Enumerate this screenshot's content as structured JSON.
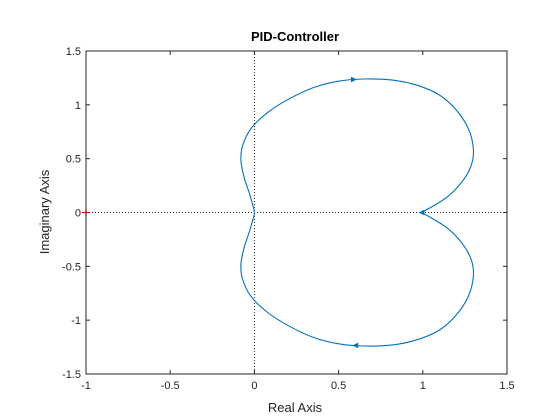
{
  "chart_data": {
    "type": "line",
    "title": "PID-Controller",
    "xlabel": "Real Axis",
    "ylabel": "Imaginary Axis",
    "xlim": [
      -1,
      1.5
    ],
    "ylim": [
      -1.5,
      1.5
    ],
    "xticks": [
      -1,
      -0.5,
      0,
      0.5,
      1,
      1.5
    ],
    "xtick_labels": [
      "-1",
      "-0.5",
      "0",
      "0.5",
      "1",
      "1.5"
    ],
    "yticks": [
      -1.5,
      -1,
      -0.5,
      0,
      0.5,
      1,
      1.5
    ],
    "ytick_labels": [
      "-1.5",
      "-1",
      "-0.5",
      "0",
      "0.5",
      "1",
      "1.5"
    ],
    "grid": false,
    "reference_lines": {
      "x": 0,
      "y": 0,
      "style": "dotted"
    },
    "critical_point": {
      "x": -1,
      "y": 0,
      "marker": "+",
      "color": "#ff0000"
    },
    "series": [
      {
        "color": "#0072bd",
        "x": [
          0.99,
          1.05,
          1.15,
          1.24,
          1.29,
          1.3,
          1.27,
          1.2,
          1.1,
          0.97,
          0.82,
          0.65,
          0.5,
          0.35,
          0.2,
          0.08,
          -0.02,
          -0.07,
          -0.08,
          -0.06,
          -0.03,
          -0.01,
          0.0,
          -0.01,
          -0.03,
          -0.06,
          -0.08,
          -0.07,
          -0.02,
          0.08,
          0.2,
          0.35,
          0.5,
          0.65,
          0.82,
          0.97,
          1.1,
          1.2,
          1.27,
          1.3,
          1.29,
          1.24,
          1.15,
          1.05,
          0.99
        ],
        "y": [
          0.0,
          0.05,
          0.15,
          0.3,
          0.45,
          0.6,
          0.78,
          0.95,
          1.09,
          1.18,
          1.23,
          1.24,
          1.22,
          1.16,
          1.05,
          0.93,
          0.78,
          0.62,
          0.48,
          0.32,
          0.18,
          0.07,
          0.0,
          -0.07,
          -0.18,
          -0.32,
          -0.48,
          -0.62,
          -0.78,
          -0.93,
          -1.05,
          -1.16,
          -1.22,
          -1.24,
          -1.23,
          -1.18,
          -1.09,
          -0.95,
          -0.78,
          -0.6,
          -0.45,
          -0.3,
          -0.15,
          -0.05,
          0.0
        ]
      }
    ],
    "direction_arrows": [
      {
        "x": 0.59,
        "y": 1.235,
        "dx": 1,
        "dy": 0
      },
      {
        "x": 0.6,
        "y": -1.235,
        "dx": -1,
        "dy": 0
      },
      {
        "x": 0.993,
        "y": 0.0,
        "dx": -1,
        "dy": 0
      }
    ]
  }
}
